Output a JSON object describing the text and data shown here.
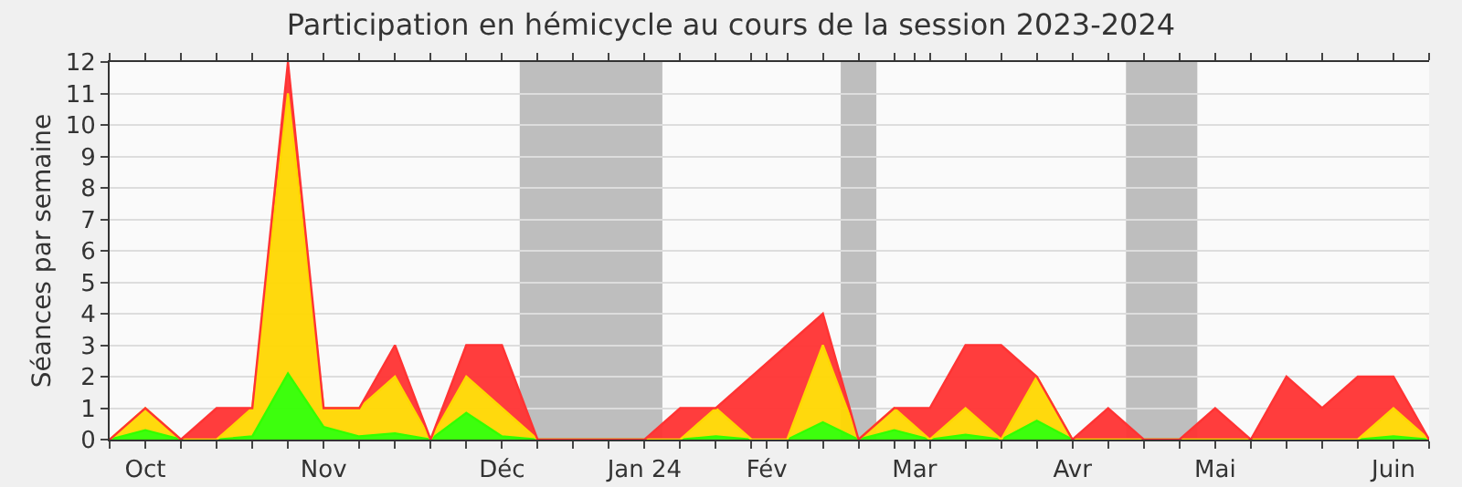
{
  "chart_data": {
    "type": "area",
    "title": "Participation en hémicycle au cours de la session 2023-2024",
    "ylabel": "Séances par semaine",
    "stacked": true,
    "grid": "y",
    "x": [
      "2023-09-25",
      "2023-10-02",
      "2023-10-09",
      "2023-10-16",
      "2023-10-23",
      "2023-10-30",
      "2023-11-06",
      "2023-11-13",
      "2023-11-20",
      "2023-11-27",
      "2023-12-04",
      "2023-12-11",
      "2023-12-18",
      "2023-12-25",
      "2024-01-01",
      "2024-01-08",
      "2024-01-15",
      "2024-01-22",
      "2024-01-29",
      "2024-02-05",
      "2024-02-12",
      "2024-02-19",
      "2024-02-26",
      "2024-03-04",
      "2024-03-11",
      "2024-03-18",
      "2024-03-25",
      "2024-04-01",
      "2024-04-08",
      "2024-04-15",
      "2024-04-22",
      "2024-04-29",
      "2024-05-06",
      "2024-05-13",
      "2024-05-20",
      "2024-05-27",
      "2024-06-03",
      "2024-06-10"
    ],
    "series": [
      {
        "color": "#33ff00",
        "values": [
          0,
          0.3,
          0,
          0,
          0.1,
          2.1,
          0.4,
          0.1,
          0.2,
          0,
          0.85,
          0.1,
          0,
          0,
          0,
          0,
          0,
          0.1,
          0,
          0,
          0.55,
          0,
          0.3,
          0,
          0.15,
          0,
          0.6,
          0,
          0,
          0,
          0,
          0,
          0,
          0,
          0,
          0,
          0.1,
          0
        ]
      },
      {
        "color": "#ffd700",
        "values": [
          0,
          0.7,
          0,
          0,
          0.9,
          8.9,
          0.6,
          0.9,
          1.8,
          0,
          1.15,
          0.9,
          0,
          0,
          0,
          0,
          0,
          0.9,
          0,
          0,
          2.45,
          0,
          0.7,
          0,
          0.85,
          0,
          1.4,
          0,
          0,
          0,
          0,
          0,
          0,
          0,
          0,
          0,
          0.9,
          0
        ]
      },
      {
        "color": "#ff3333",
        "values": [
          0,
          0,
          0,
          1,
          0,
          1,
          0,
          0,
          1,
          0,
          1,
          2,
          0,
          0,
          0,
          0,
          1,
          0,
          2,
          3,
          1,
          0,
          0,
          1,
          2,
          3,
          0,
          0,
          1,
          0,
          0,
          1,
          0,
          2,
          1,
          2,
          1,
          0
        ]
      }
    ],
    "ylim": [
      0,
      12
    ],
    "yticks": [
      0,
      1,
      2,
      3,
      4,
      5,
      6,
      7,
      8,
      9,
      10,
      11,
      12
    ],
    "xlim": [
      "2023-09-25",
      "2024-06-10"
    ],
    "xticks": [
      {
        "value": "2023-09-25",
        "label": null
      },
      {
        "value": "2023-10-02",
        "label": "Oct"
      },
      {
        "value": "2023-10-09",
        "label": null
      },
      {
        "value": "2023-10-16",
        "label": null
      },
      {
        "value": "2023-10-23",
        "label": null
      },
      {
        "value": "2023-10-30",
        "label": null
      },
      {
        "value": "2023-11-06",
        "label": "Nov"
      },
      {
        "value": "2023-11-13",
        "label": null
      },
      {
        "value": "2023-11-20",
        "label": null
      },
      {
        "value": "2023-11-27",
        "label": null
      },
      {
        "value": "2023-12-04",
        "label": null
      },
      {
        "value": "2023-12-11",
        "label": "Déc"
      },
      {
        "value": "2023-12-18",
        "label": null
      },
      {
        "value": "2023-12-25",
        "label": null
      },
      {
        "value": "2024-01-01",
        "label": null
      },
      {
        "value": "2024-01-08",
        "label": "Jan 24"
      },
      {
        "value": "2024-01-15",
        "label": null
      },
      {
        "value": "2024-01-22",
        "label": null
      },
      {
        "value": "2024-01-29",
        "label": null
      },
      {
        "value": "2024-02-01",
        "label": "Fév"
      },
      {
        "value": "2024-02-05",
        "label": null
      },
      {
        "value": "2024-02-12",
        "label": null
      },
      {
        "value": "2024-02-19",
        "label": null
      },
      {
        "value": "2024-02-26",
        "label": null
      },
      {
        "value": "2024-03-01",
        "label": "Mar"
      },
      {
        "value": "2024-03-04",
        "label": null
      },
      {
        "value": "2024-03-11",
        "label": null
      },
      {
        "value": "2024-03-18",
        "label": null
      },
      {
        "value": "2024-03-25",
        "label": null
      },
      {
        "value": "2024-04-01",
        "label": "Avr"
      },
      {
        "value": "2024-04-08",
        "label": null
      },
      {
        "value": "2024-04-15",
        "label": null
      },
      {
        "value": "2024-04-22",
        "label": null
      },
      {
        "value": "2024-04-29",
        "label": "Mai"
      },
      {
        "value": "2024-05-06",
        "label": null
      },
      {
        "value": "2024-05-13",
        "label": null
      },
      {
        "value": "2024-05-20",
        "label": null
      },
      {
        "value": "2024-05-27",
        "label": null
      },
      {
        "value": "2024-06-03",
        "label": "Juin"
      },
      {
        "value": "2024-06-10",
        "label": null
      }
    ],
    "bands": [
      {
        "axis": "x",
        "from": "2023-12-14T12:00",
        "to": "2024-01-11T12:00",
        "color": "#aaaaaa"
      },
      {
        "axis": "x",
        "from": "2024-02-15T12:00",
        "to": "2024-02-22T12:00",
        "color": "#aaaaaa"
      },
      {
        "axis": "x",
        "from": "2024-04-11T12:00",
        "to": "2024-04-25T12:00",
        "color": "#aaaaaa"
      }
    ]
  }
}
